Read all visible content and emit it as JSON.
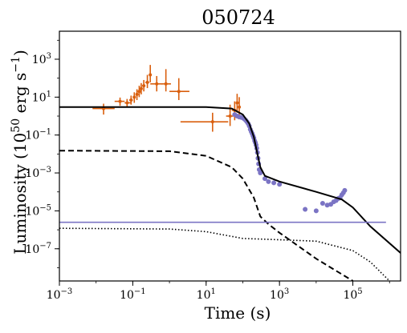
{
  "chart_data": {
    "type": "scatter",
    "title": "050724",
    "xlabel": "Time (s)",
    "ylabel_main": "Luminosity (10",
    "ylabel_exp": "50",
    "ylabel_rest": " erg s",
    "ylabel_exp2": "−1",
    "ylabel_close": ")",
    "xscale": "log",
    "yscale": "log",
    "xlim": [
      0.001,
      2000000
    ],
    "ylim": [
      2e-09,
      30000
    ],
    "grid": false,
    "xticks": [
      {
        "value": 0.001,
        "base": "10",
        "exp": "−3"
      },
      {
        "value": 0.1,
        "base": "10",
        "exp": "−1"
      },
      {
        "value": 10,
        "base": "10",
        "exp": "1"
      },
      {
        "value": 1000,
        "base": "10",
        "exp": "3"
      },
      {
        "value": 100000,
        "base": "10",
        "exp": "5"
      }
    ],
    "yticks": [
      {
        "value": 1e-07,
        "base": "10",
        "exp": "−7"
      },
      {
        "value": 1e-05,
        "base": "10",
        "exp": "−5"
      },
      {
        "value": 0.001,
        "base": "10",
        "exp": "−3"
      },
      {
        "value": 0.1,
        "base": "10",
        "exp": "−1"
      },
      {
        "value": 10,
        "base": "10",
        "exp": "1"
      },
      {
        "value": 1000,
        "base": "10",
        "exp": "3"
      }
    ],
    "colors": {
      "bat": "#d95f0e",
      "xrt": "#7b74c4",
      "model": "#000000"
    },
    "series": [
      {
        "marker": "errorbar",
        "color": "#d95f0e",
        "points": [
          {
            "x": 0.016,
            "y": 2.5,
            "xerr": [
              0.008,
              0.032
            ],
            "yerr": [
              1.2,
              4.5
            ]
          },
          {
            "x": 0.045,
            "y": 6.0,
            "xerr": [
              0.032,
              0.06
            ],
            "yerr": [
              3.5,
              9.5
            ]
          },
          {
            "x": 0.07,
            "y": 5.0,
            "xerr": [
              0.06,
              0.09
            ],
            "yerr": [
              3.0,
              8.0
            ]
          },
          {
            "x": 0.09,
            "y": 7.0,
            "xerr": [
              0.08,
              0.1
            ],
            "yerr": [
              4.0,
              12.0
            ]
          },
          {
            "x": 0.11,
            "y": 10.0,
            "xerr": [
              0.1,
              0.12
            ],
            "yerr": [
              5.0,
              18.0
            ]
          },
          {
            "x": 0.13,
            "y": 14.0,
            "xerr": [
              0.12,
              0.14
            ],
            "yerr": [
              7.0,
              26.0
            ]
          },
          {
            "x": 0.15,
            "y": 20.0,
            "xerr": [
              0.14,
              0.16
            ],
            "yerr": [
              10.0,
              40.0
            ]
          },
          {
            "x": 0.17,
            "y": 28.0,
            "xerr": [
              0.16,
              0.18
            ],
            "yerr": [
              14.0,
              55.0
            ]
          },
          {
            "x": 0.2,
            "y": 40.0,
            "xerr": [
              0.18,
              0.22
            ],
            "yerr": [
              20.0,
              80.0
            ]
          },
          {
            "x": 0.25,
            "y": 60.0,
            "xerr": [
              0.22,
              0.28
            ],
            "yerr": [
              30.0,
              150.0
            ]
          },
          {
            "x": 0.3,
            "y": 150.0,
            "xerr": [
              0.28,
              0.32
            ],
            "yerr": [
              60.0,
              500.0
            ]
          },
          {
            "x": 0.45,
            "y": 50.0,
            "xerr": [
              0.3,
              0.65
            ],
            "yerr": [
              20.0,
              130.0
            ]
          },
          {
            "x": 0.8,
            "y": 50.0,
            "xerr": [
              0.6,
              1.1
            ],
            "yerr": [
              20.0,
              300.0
            ]
          },
          {
            "x": 1.8,
            "y": 20.0,
            "xerr": [
              1.0,
              3.5
            ],
            "yerr": [
              7.0,
              100.0
            ]
          },
          {
            "x": 15.0,
            "y": 0.5,
            "xerr": [
              2.0,
              40.0
            ],
            "yerr": [
              0.15,
              1.5
            ]
          },
          {
            "x": 45.0,
            "y": 1.0,
            "xerr": [
              35.0,
              55.0
            ],
            "yerr": [
              0.3,
              4.0
            ]
          },
          {
            "x": 60.0,
            "y": 2.0,
            "xerr": [
              50.0,
              70.0
            ],
            "yerr": [
              0.6,
              6.0
            ]
          },
          {
            "x": 70.0,
            "y": 5.0,
            "xerr": [
              65.0,
              78.0
            ],
            "yerr": [
              1.5,
              15.0
            ]
          },
          {
            "x": 80.0,
            "y": 3.0,
            "xerr": [
              75.0,
              85.0
            ],
            "yerr": [
              0.8,
              10.0
            ]
          }
        ]
      },
      {
        "marker": "dot",
        "color": "#7b74c4",
        "points": [
          {
            "x": 60,
            "y": 1.2
          },
          {
            "x": 70,
            "y": 1.0
          },
          {
            "x": 80,
            "y": 0.9
          },
          {
            "x": 90,
            "y": 0.85
          },
          {
            "x": 100,
            "y": 0.8
          },
          {
            "x": 110,
            "y": 0.7
          },
          {
            "x": 120,
            "y": 0.6
          },
          {
            "x": 130,
            "y": 0.5
          },
          {
            "x": 140,
            "y": 0.4
          },
          {
            "x": 150,
            "y": 0.3
          },
          {
            "x": 160,
            "y": 0.2
          },
          {
            "x": 170,
            "y": 0.15
          },
          {
            "x": 180,
            "y": 0.12
          },
          {
            "x": 190,
            "y": 0.09
          },
          {
            "x": 200,
            "y": 0.07
          },
          {
            "x": 210,
            "y": 0.05
          },
          {
            "x": 220,
            "y": 0.04
          },
          {
            "x": 230,
            "y": 0.03
          },
          {
            "x": 240,
            "y": 0.02
          },
          {
            "x": 250,
            "y": 0.012
          },
          {
            "x": 260,
            "y": 0.006
          },
          {
            "x": 270,
            "y": 0.003
          },
          {
            "x": 280,
            "y": 0.0015
          },
          {
            "x": 300,
            "y": 0.001
          },
          {
            "x": 400,
            "y": 0.0005
          },
          {
            "x": 500,
            "y": 0.00035
          },
          {
            "x": 700,
            "y": 0.0003
          },
          {
            "x": 1000,
            "y": 0.00025
          },
          {
            "x": 5000,
            "y": 1.2e-05
          },
          {
            "x": 10000,
            "y": 1e-05
          },
          {
            "x": 15000,
            "y": 2.5e-05
          },
          {
            "x": 20000,
            "y": 2e-05
          },
          {
            "x": 25000,
            "y": 2.2e-05
          },
          {
            "x": 30000,
            "y": 3e-05
          },
          {
            "x": 35000,
            "y": 3.5e-05
          },
          {
            "x": 40000,
            "y": 4.5e-05
          },
          {
            "x": 45000,
            "y": 5e-05
          },
          {
            "x": 50000,
            "y": 7e-05
          },
          {
            "x": 55000,
            "y": 9e-05
          },
          {
            "x": 60000,
            "y": 0.00012
          }
        ]
      },
      {
        "marker": "line",
        "style": "solid",
        "color": "#000000",
        "points": [
          {
            "x": 0.001,
            "y": 3
          },
          {
            "x": 10,
            "y": 3
          },
          {
            "x": 50,
            "y": 2.5
          },
          {
            "x": 100,
            "y": 1.2
          },
          {
            "x": 150,
            "y": 0.4
          },
          {
            "x": 200,
            "y": 0.08
          },
          {
            "x": 250,
            "y": 0.01
          },
          {
            "x": 300,
            "y": 0.002
          },
          {
            "x": 400,
            "y": 0.0007
          },
          {
            "x": 1000,
            "y": 0.00035
          },
          {
            "x": 10000,
            "y": 0.0001
          },
          {
            "x": 50000,
            "y": 4e-05
          },
          {
            "x": 100000,
            "y": 1.5e-05
          },
          {
            "x": 300000,
            "y": 1.5e-06
          },
          {
            "x": 2000000,
            "y": 6e-08
          }
        ]
      },
      {
        "marker": "line",
        "style": "dashed",
        "color": "#000000",
        "points": [
          {
            "x": 0.001,
            "y": 0.015
          },
          {
            "x": 1,
            "y": 0.014
          },
          {
            "x": 10,
            "y": 0.008
          },
          {
            "x": 50,
            "y": 0.002
          },
          {
            "x": 100,
            "y": 0.0005
          },
          {
            "x": 200,
            "y": 5e-05
          },
          {
            "x": 300,
            "y": 5e-06
          },
          {
            "x": 500,
            "y": 2e-06
          },
          {
            "x": 1000,
            "y": 7e-07
          },
          {
            "x": 10000,
            "y": 3e-08
          },
          {
            "x": 100000,
            "y": 2e-09
          }
        ]
      },
      {
        "marker": "line",
        "style": "dotted",
        "color": "#000000",
        "points": [
          {
            "x": 0.001,
            "y": 1.2e-06
          },
          {
            "x": 1,
            "y": 1.1e-06
          },
          {
            "x": 10,
            "y": 8e-07
          },
          {
            "x": 100,
            "y": 3.5e-07
          },
          {
            "x": 1000,
            "y": 3e-07
          },
          {
            "x": 10000,
            "y": 2.5e-07
          },
          {
            "x": 100000,
            "y": 8e-08
          },
          {
            "x": 300000,
            "y": 2e-08
          },
          {
            "x": 1000000,
            "y": 2e-09
          }
        ]
      },
      {
        "marker": "hline",
        "color": "#7b74c4",
        "y": 2.5e-06,
        "xrange": [
          0.001,
          800000
        ]
      }
    ]
  }
}
